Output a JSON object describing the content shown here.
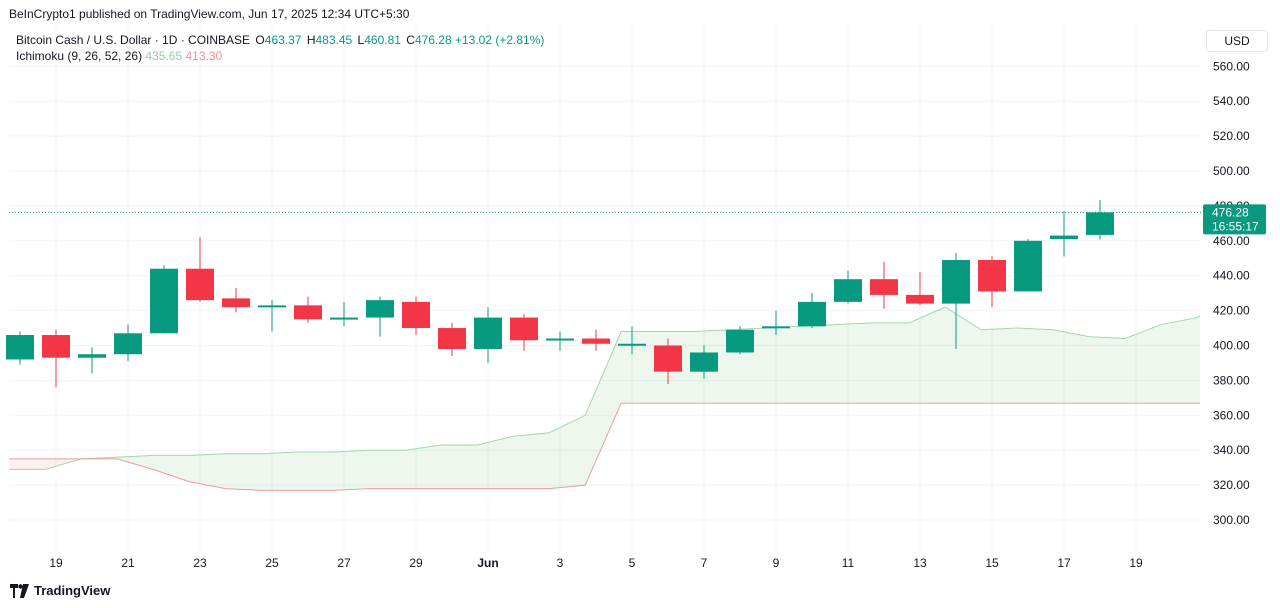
{
  "publisher": "BeInCrypto1 published on TradingView.com, Jun 17, 2025 12:34 UTC+5:30",
  "legend": {
    "symbol": "Bitcoin Cash / U.S. Dollar · 1D · COINBASE",
    "o_label": "O",
    "o_value": "463.37",
    "h_label": "H",
    "h_value": "483.45",
    "l_label": "L",
    "l_value": "460.81",
    "c_label": "C",
    "c_value": "476.28",
    "change": "+13.02 (+2.81%)",
    "indicator": "Ichimoku (9, 26, 52, 26)",
    "span_a": "435.65",
    "span_b": "413.30"
  },
  "currency": "USD",
  "price_label": {
    "value": "476.28",
    "countdown": "16:55:17"
  },
  "footer_brand": "TradingView",
  "colors": {
    "up": "#089981",
    "down": "#f23645",
    "span_a": "#a5d6a7",
    "span_b": "#ef9a9a",
    "cloud": "rgba(76,175,80,0.10)",
    "cloud_down": "rgba(242,54,69,0.08)"
  },
  "chart_data": {
    "type": "candlestick",
    "ylim": [
      282,
      572
    ],
    "y_ticks": [
      "300.00",
      "320.00",
      "340.00",
      "360.00",
      "380.00",
      "400.00",
      "420.00",
      "440.00",
      "460.00",
      "480.00",
      "500.00",
      "520.00",
      "540.00",
      "560.00"
    ],
    "x_tick_labels": [
      "19",
      "21",
      "23",
      "25",
      "27",
      "29",
      "Jun",
      "3",
      "5",
      "7",
      "9",
      "11",
      "13",
      "15",
      "17",
      "19"
    ],
    "current_price": 476.28,
    "candles": [
      {
        "date": "May 18",
        "o": 392,
        "h": 408,
        "l": 389,
        "c": 406
      },
      {
        "date": "May 19",
        "o": 406,
        "h": 409,
        "l": 376,
        "c": 393
      },
      {
        "date": "May 20",
        "o": 393,
        "h": 399,
        "l": 384,
        "c": 395
      },
      {
        "date": "May 21",
        "o": 395,
        "h": 412,
        "l": 391,
        "c": 407
      },
      {
        "date": "May 22",
        "o": 407,
        "h": 446,
        "l": 407,
        "c": 444
      },
      {
        "date": "May 23",
        "o": 444,
        "h": 462,
        "l": 425,
        "c": 426
      },
      {
        "date": "May 24",
        "o": 427,
        "h": 433,
        "l": 419,
        "c": 422
      },
      {
        "date": "May 25",
        "o": 422,
        "h": 426,
        "l": 408,
        "c": 423
      },
      {
        "date": "May 26",
        "o": 423,
        "h": 428,
        "l": 413,
        "c": 415
      },
      {
        "date": "May 27",
        "o": 416,
        "h": 425,
        "l": 411,
        "c": 416
      },
      {
        "date": "May 28",
        "o": 416,
        "h": 428,
        "l": 405,
        "c": 426
      },
      {
        "date": "May 29",
        "o": 425,
        "h": 428,
        "l": 406,
        "c": 410
      },
      {
        "date": "May 30",
        "o": 410,
        "h": 413,
        "l": 394,
        "c": 398
      },
      {
        "date": "May 31",
        "o": 398,
        "h": 422,
        "l": 390,
        "c": 416
      },
      {
        "date": "Jun 1",
        "o": 416,
        "h": 418,
        "l": 397,
        "c": 403
      },
      {
        "date": "Jun 2",
        "o": 404,
        "h": 408,
        "l": 397,
        "c": 404
      },
      {
        "date": "Jun 3",
        "o": 404,
        "h": 409,
        "l": 397,
        "c": 401
      },
      {
        "date": "Jun 4",
        "o": 401,
        "h": 411,
        "l": 395,
        "c": 401
      },
      {
        "date": "Jun 5",
        "o": 400,
        "h": 404,
        "l": 378,
        "c": 385
      },
      {
        "date": "Jun 6",
        "o": 385,
        "h": 400,
        "l": 381,
        "c": 396
      },
      {
        "date": "Jun 7",
        "o": 396,
        "h": 411,
        "l": 395,
        "c": 409
      },
      {
        "date": "Jun 8",
        "o": 410,
        "h": 420,
        "l": 406,
        "c": 411
      },
      {
        "date": "Jun 9",
        "o": 411,
        "h": 430,
        "l": 410,
        "c": 425
      },
      {
        "date": "Jun 10",
        "o": 425,
        "h": 443,
        "l": 424,
        "c": 438
      },
      {
        "date": "Jun 11",
        "o": 438,
        "h": 448,
        "l": 421,
        "c": 429
      },
      {
        "date": "Jun 12",
        "o": 429,
        "h": 442,
        "l": 423,
        "c": 424
      },
      {
        "date": "Jun 13",
        "o": 424,
        "h": 453,
        "l": 398,
        "c": 449
      },
      {
        "date": "Jun 14",
        "o": 449,
        "h": 451,
        "l": 422,
        "c": 431
      },
      {
        "date": "Jun 15",
        "o": 431,
        "h": 461,
        "l": 431,
        "c": 460
      },
      {
        "date": "Jun 16",
        "o": 461,
        "h": 477,
        "l": 451,
        "c": 463
      },
      {
        "date": "Jun 17",
        "o": 463.37,
        "h": 483.45,
        "l": 460.81,
        "c": 476.28
      }
    ],
    "ichimoku_span_a": [
      329,
      329,
      335,
      336,
      337,
      337,
      338,
      338,
      339,
      339,
      340,
      340,
      343,
      343,
      348,
      350,
      360,
      408,
      408,
      408,
      409,
      410,
      411,
      412,
      413,
      413,
      422,
      409,
      410,
      409,
      405,
      404,
      412,
      416,
      417,
      417,
      417
    ],
    "ichimoku_span_b": [
      335,
      335,
      335,
      335,
      329,
      322,
      318,
      317,
      317,
      317,
      318,
      318,
      318,
      318,
      318,
      318,
      320,
      367,
      367,
      367,
      367,
      367,
      367,
      367,
      367,
      367,
      367,
      367,
      367,
      367,
      367,
      367,
      367,
      367,
      367,
      367,
      367
    ]
  }
}
